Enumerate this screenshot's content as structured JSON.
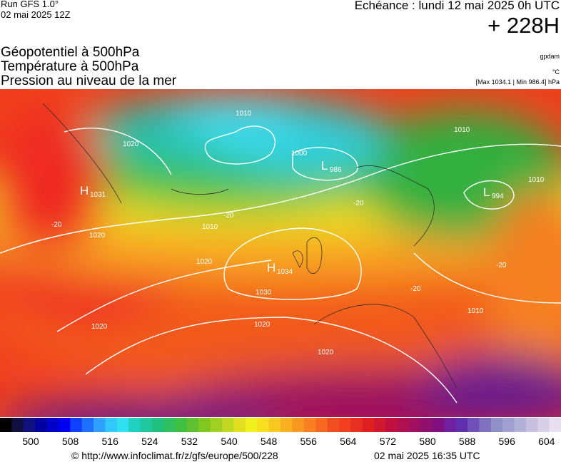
{
  "header": {
    "run": "Run GFS 1.0°",
    "run_date": "02 mai 2025 12Z",
    "valid": "Echéance : lundi 12 mai 2025 0h UTC",
    "lead": "+ 228H"
  },
  "titles": [
    "Géopotentiel à 500hPa",
    "Température à 500hPa",
    "Pression au niveau de la mer"
  ],
  "units": {
    "geopotential": "gpdam",
    "temperature": "°C",
    "pressure": "[Max 1034.1 | Min 986.4] hPa"
  },
  "centers": [
    {
      "symbol": "H",
      "value": "1031"
    },
    {
      "symbol": "L",
      "value": "986"
    },
    {
      "symbol": "L",
      "value": "994"
    },
    {
      "symbol": "H",
      "value": "1034"
    }
  ],
  "isobar_labels": [
    "1010",
    "1020",
    "1000",
    "1010",
    "1020",
    "1020",
    "1030",
    "1020",
    "1020",
    "1010",
    "1010",
    "1020",
    "1010"
  ],
  "isotherm_labels": [
    "-20",
    "-20",
    "-20",
    "-20",
    "-20"
  ],
  "colorbar_labels": [
    500,
    508,
    516,
    524,
    532,
    540,
    548,
    556,
    564,
    572,
    580,
    588,
    596,
    604
  ],
  "footer": {
    "url": "© http://www.infoclimat.fr/z/gfs/europe/500/228",
    "generated": "02 mai 2025 16:35 UTC"
  }
}
